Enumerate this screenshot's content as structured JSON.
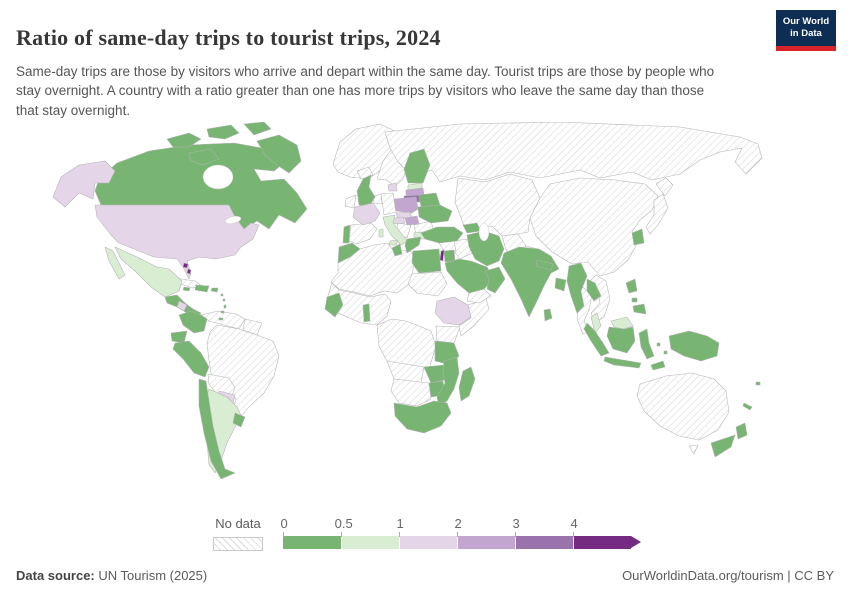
{
  "header": {
    "title": "Ratio of same-day trips to tourist trips, 2024",
    "logo_line1": "Our World",
    "logo_line2": "in Data",
    "logo_bg": "#0d2d52",
    "logo_accent": "#d8232a"
  },
  "subtitle": "Same-day trips are those by visitors who arrive and depart within the same day. Tourist trips are those by people who stay overnight. A country with a ratio greater than one has more trips by visitors who leave the same day than those that stay overnight.",
  "legend": {
    "no_data_label": "No data",
    "ticks": [
      "0",
      "0.5",
      "1",
      "2",
      "3",
      "4"
    ],
    "buckets": [
      {
        "id": "g1",
        "range": "0-0.5",
        "color": "#78b573"
      },
      {
        "id": "g2",
        "range": "0.5-1",
        "color": "#d8edd2"
      },
      {
        "id": "p1",
        "range": "1-2",
        "color": "#e4d5e8"
      },
      {
        "id": "p2",
        "range": "2-3",
        "color": "#c2a6cf"
      },
      {
        "id": "p3",
        "range": "3-4",
        "color": "#9a73ac"
      },
      {
        "id": "p4",
        "range": "4+",
        "color": "#762b83"
      }
    ],
    "nodata_hatch_color": "#d9d9d9"
  },
  "chart_data": {
    "type": "choropleth_map",
    "title": "Ratio of same-day trips to tourist trips, 2024",
    "unit": "ratio of same-day trips to tourist trips",
    "legend_ranges": {
      "g1": "0-0.5",
      "g2": "0.5-1",
      "p1": "1-2",
      "p2": "2-3",
      "p3": "3-4",
      "p4": "4+",
      "nodata": "No data"
    },
    "countries": {
      "canada": "g1",
      "united-states": "p1",
      "mexico": "g2",
      "greenland": "nodata",
      "central-america": "g1",
      "honduras-nicaragua": "p1",
      "cuba": "nodata",
      "bahamas": "p4",
      "jamaica": "g1",
      "dominican-republic": "g1",
      "puerto-rico": "g1",
      "lesser-antilles": "g1",
      "colombia": "g1",
      "venezuela": "nodata",
      "guyanas": "nodata",
      "ecuador": "g1",
      "peru": "g1",
      "brazil": "nodata",
      "bolivia": "nodata",
      "paraguay": "p1",
      "argentina": "g2",
      "uruguay": "g1",
      "chile": "g1",
      "iceland": "nodata",
      "ireland": "nodata",
      "united-kingdom": "g1",
      "norway-sweden": "nodata",
      "finland": "g1",
      "denmark": "p1",
      "estonia": "g2",
      "latvia": "p2",
      "lithuania": "p3",
      "poland": "p2",
      "belarus": "g1",
      "ukraine": "g1",
      "germany": "nodata",
      "benelux": "nodata",
      "france": "p1",
      "portugal": "g1",
      "spain": "nodata",
      "italy": "g2",
      "czechia": "p1",
      "austria": "p1",
      "hungary": "p2",
      "romania": "nodata",
      "west-balkans": "nodata",
      "bulgaria": "g2",
      "greece": "g1",
      "russia": "nodata",
      "central-asia": "nodata",
      "china-mongolia": "nodata",
      "japan": "nodata",
      "south-korea": "g1",
      "afghanistan": "nodata",
      "pakistan": "nodata",
      "india": "g1",
      "nepal": "g1",
      "bangladesh": "g1",
      "sri-lanka": "g1",
      "myanmar": "g1",
      "thailand": "nodata",
      "laos": "g1",
      "vietnam-cambodia": "nodata",
      "malaysia": "g2",
      "indonesia": "g1",
      "timor-leste": "g1",
      "papua-new-guinea": "g1",
      "philippines": "g1",
      "australia": "nodata",
      "tasmania": "nodata",
      "new-zealand": "g1",
      "fiji": "g1",
      "new-caledonia": "g1",
      "morocco": "g1",
      "tunisia": "g1",
      "north-africa-sahara": "nodata",
      "egypt": "g1",
      "sudan": "nodata",
      "west-africa": "nodata",
      "senegal": "g1",
      "benin": "g1",
      "central-africa": "nodata",
      "ethiopia": "p1",
      "somalia": "nodata",
      "kenya": "nodata",
      "tanzania": "g1",
      "zambia": "g1",
      "angola": "nodata",
      "namibia-botswana": "nodata",
      "zimbabwe": "g1",
      "mozambique": "g1",
      "south-africa": "g1",
      "madagascar": "g1",
      "turkey": "g1",
      "caucasus": "g1",
      "syria": "nodata",
      "israel": "p4",
      "jordan": "g1",
      "iraq": "nodata",
      "saudi-arabia": "g1",
      "yemen": "nodata",
      "oman-uae": "g1",
      "iran": "g1"
    }
  },
  "footer": {
    "source_label": "Data source:",
    "source_value": " UN Tourism (2025)",
    "link": "OurWorldinData.org/tourism",
    "separator": " | ",
    "license": "CC BY"
  }
}
